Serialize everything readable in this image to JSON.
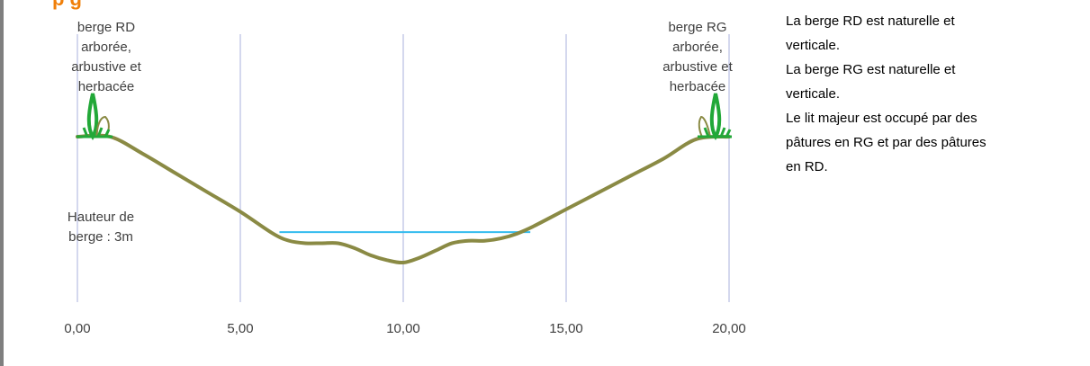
{
  "colors": {
    "profile": "#8a8a44",
    "water": "#33bbee",
    "grid": "#aab0dd",
    "vegetation": "#22a838",
    "title": "#f07f09"
  },
  "chart_data": {
    "type": "line",
    "title": "",
    "xlabel": "",
    "ylabel": "",
    "xlim": [
      0,
      20
    ],
    "ylim": [
      -3.5,
      0.2
    ],
    "grid": "vertical",
    "x_ticks": [
      "0,00",
      "5,00",
      "10,00",
      "15,00",
      "20,00"
    ],
    "x_tick_values": [
      0,
      5,
      10,
      15,
      20
    ],
    "series": [
      {
        "x": [
          0,
          1,
          2,
          3,
          4,
          5,
          6,
          6.5,
          7,
          7.5,
          8,
          8.5,
          9,
          9.5,
          10,
          10.5,
          11,
          11.5,
          12,
          12.5,
          13,
          13.5,
          14,
          15,
          16,
          17,
          18,
          19,
          20
        ],
        "y": [
          0,
          0,
          -0.35,
          -0.75,
          -1.15,
          -1.55,
          -2.0,
          -2.15,
          -2.2,
          -2.2,
          -2.2,
          -2.3,
          -2.45,
          -2.55,
          -2.6,
          -2.5,
          -2.35,
          -2.2,
          -2.15,
          -2.15,
          -2.1,
          -2.0,
          -1.85,
          -1.5,
          -1.15,
          -0.8,
          -0.45,
          -0.05,
          0
        ]
      },
      {
        "name": "water",
        "x": [
          6.2,
          13.9
        ],
        "y": [
          -1.97,
          -1.97
        ]
      }
    ],
    "annotations": {
      "rd_bank": [
        "berge RD",
        "arborée,",
        "arbustive et",
        "herbacée"
      ],
      "rg_bank": [
        "berge RG",
        "arborée,",
        "arbustive et",
        "herbacée"
      ],
      "height": [
        "Hauteur de",
        "berge : 3m"
      ]
    }
  },
  "title_fragment": "p            g",
  "description": [
    "La berge RD est naturelle et",
    "verticale.",
    "La berge RG est naturelle et",
    "verticale.",
    "Le lit majeur est occupé par des",
    "pâtures en RG et par des pâtures",
    "en RD."
  ]
}
